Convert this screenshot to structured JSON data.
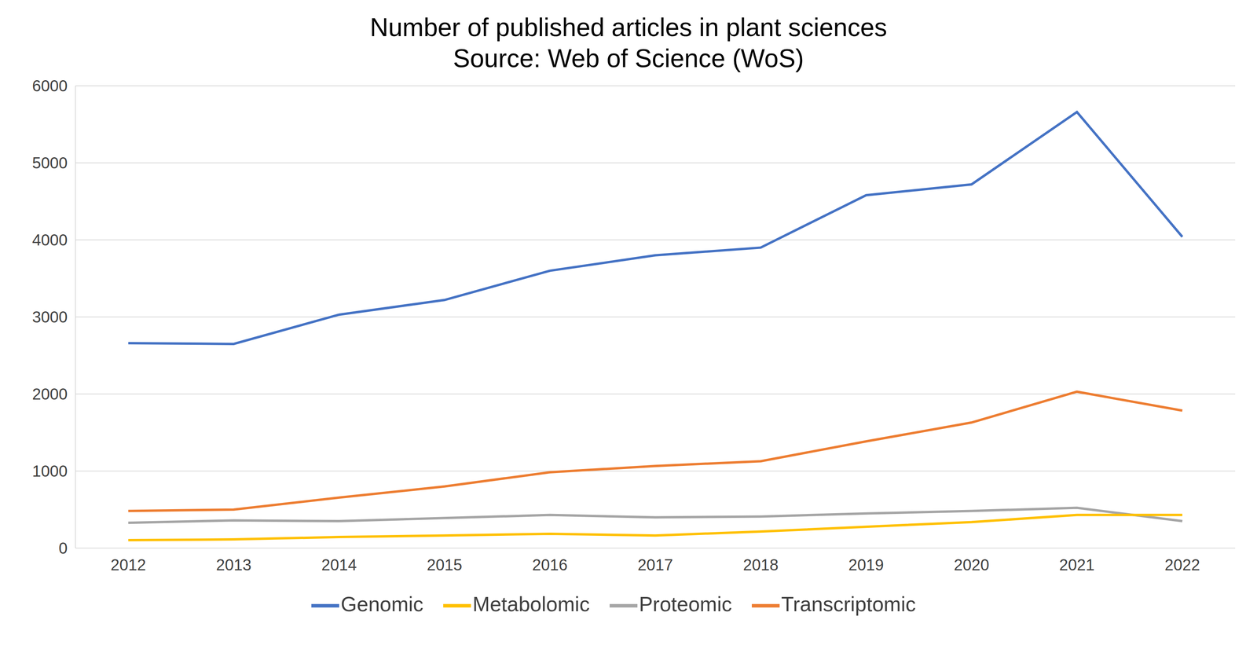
{
  "chart_data": {
    "type": "line",
    "title": "Number of published articles in plant sciences",
    "subtitle": "Source: Web of Science (WoS)",
    "categories": [
      "2012",
      "2013",
      "2014",
      "2015",
      "2016",
      "2017",
      "2018",
      "2019",
      "2020",
      "2021",
      "2022"
    ],
    "series": [
      {
        "name": "Genomic",
        "color": "#4472c4",
        "values": [
          2660,
          2650,
          3030,
          3220,
          3600,
          3800,
          3900,
          4580,
          4720,
          5660,
          4040
        ]
      },
      {
        "name": "Transcriptomic",
        "color": "#ed7d31",
        "values": [
          482,
          500,
          656,
          800,
          985,
          1066,
          1128,
          1385,
          1630,
          2030,
          1785
        ]
      },
      {
        "name": "Proteomic",
        "color": "#a5a5a5",
        "values": [
          328,
          360,
          350,
          390,
          430,
          400,
          410,
          450,
          482,
          523,
          350
        ]
      },
      {
        "name": "Metabolomic",
        "color": "#ffc000",
        "values": [
          103,
          113,
          144,
          164,
          185,
          164,
          215,
          277,
          338,
          430,
          430
        ]
      }
    ],
    "ylim": [
      0,
      6000
    ],
    "yticks": [
      0,
      1000,
      2000,
      3000,
      4000,
      5000,
      6000
    ],
    "grid": true,
    "legend": "bottom"
  }
}
